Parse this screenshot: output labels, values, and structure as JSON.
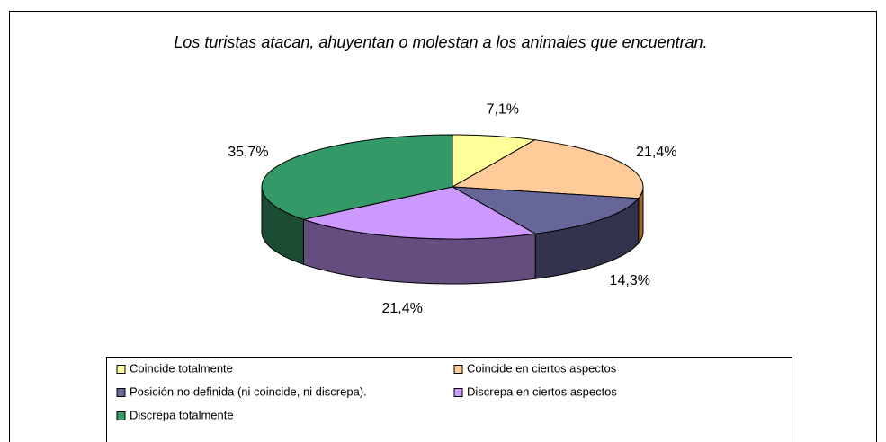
{
  "chart_data": {
    "type": "pie",
    "title": "Los turistas atacan, ahuyentan o molestan a los animales que encuentran.",
    "categories": [
      "Coincide totalmente",
      "Coincide en ciertos aspectos",
      "Posición no definida (ni coincide, ni discrepa).",
      "Discrepa en ciertos aspectos",
      "Discrepa totalmente"
    ],
    "values": [
      7.1,
      21.4,
      14.3,
      21.4,
      35.7
    ],
    "value_labels": [
      "7,1%",
      "21,4%",
      "14,3%",
      "21,4%",
      "35,7%"
    ],
    "colors": [
      "#ffff99",
      "#ffcc99",
      "#666699",
      "#cc99ff",
      "#339966"
    ],
    "side_colors": [
      "#99994d",
      "#996633",
      "#33334d",
      "#664d80",
      "#1a4d33"
    ],
    "legend": "bottom"
  }
}
